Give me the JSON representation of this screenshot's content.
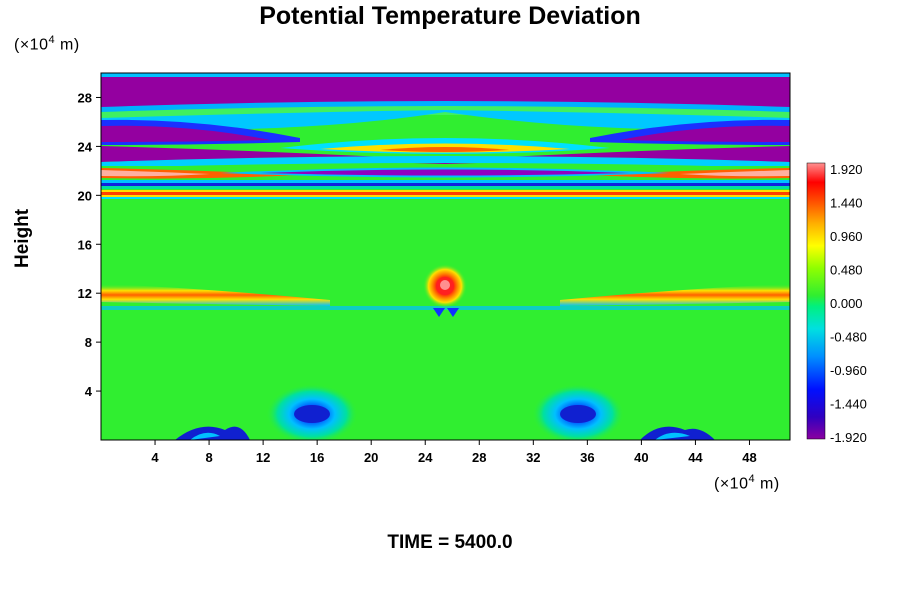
{
  "chart_data": {
    "type": "heatmap",
    "title": "Potential Temperature Deviation",
    "ylabel": "Height",
    "xlabel": "",
    "y_unit": {
      "prefix": "(×10",
      "exp": "4",
      "suffix": " m)"
    },
    "x_unit": {
      "prefix": "(×10",
      "exp": "4",
      "suffix": " m)"
    },
    "xlim": [
      0,
      51
    ],
    "ylim": [
      0,
      30
    ],
    "x_ticks": [
      "4",
      "8",
      "12",
      "16",
      "20",
      "24",
      "28",
      "32",
      "36",
      "40",
      "44",
      "48"
    ],
    "x_tick_values": [
      4,
      8,
      12,
      16,
      20,
      24,
      28,
      32,
      36,
      40,
      44,
      48
    ],
    "y_ticks": [
      "4",
      "8",
      "12",
      "16",
      "20",
      "24",
      "28"
    ],
    "y_tick_values": [
      4,
      8,
      12,
      16,
      20,
      24,
      28
    ],
    "colorbar": {
      "range": [
        -1.92,
        1.92
      ],
      "labels": [
        "1.920",
        "1.440",
        "0.960",
        "0.480",
        "0.000",
        "-0.480",
        "-0.960",
        "-1.440",
        "-1.920"
      ],
      "label_values": [
        1.92,
        1.44,
        0.96,
        0.48,
        0.0,
        -0.48,
        -0.96,
        -1.44,
        -1.92
      ]
    },
    "features": [
      {
        "kind": "band",
        "y": 27.0,
        "value": -1.92
      },
      {
        "kind": "band",
        "y": 23.0,
        "value": -1.92
      },
      {
        "kind": "band",
        "y": 21.5,
        "value": 1.5
      },
      {
        "kind": "band",
        "y": 20.2,
        "value": 1.2
      },
      {
        "kind": "band",
        "y": 12.0,
        "value": 1.0
      },
      {
        "kind": "blob",
        "x": 25.5,
        "y": 12.7,
        "value": 1.92
      },
      {
        "kind": "vortex",
        "x": 16,
        "y": 2,
        "value": -1.5
      },
      {
        "kind": "vortex",
        "x": 35,
        "y": 2,
        "value": -1.5
      }
    ],
    "footer": "TIME = 5400.0"
  }
}
